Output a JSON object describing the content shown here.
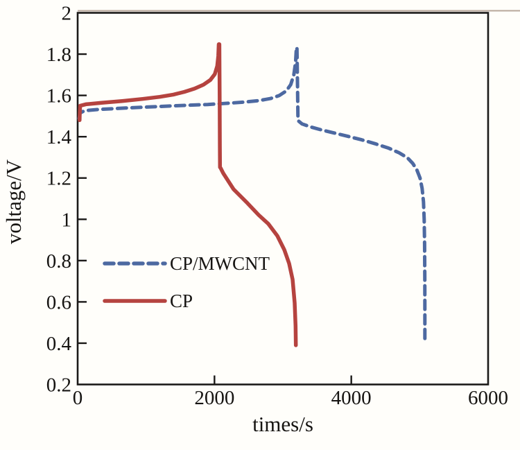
{
  "chart_data": {
    "type": "line",
    "title": "",
    "xlabel": "times/s",
    "ylabel": "voltage/V",
    "xlim": [
      0,
      6000
    ],
    "ylim": [
      0.2,
      2.0
    ],
    "x_ticks": [
      0,
      2000,
      4000,
      6000
    ],
    "x_tick_labels": [
      "0",
      "2000",
      "4000",
      "6000"
    ],
    "y_ticks": [
      0.2,
      0.4,
      0.6,
      0.8,
      1.0,
      1.2,
      1.4,
      1.6,
      1.8,
      2.0
    ],
    "y_tick_labels": [
      "0.2",
      "0.4",
      "0.6",
      "0.8",
      "1",
      "1.2",
      "1.4",
      "1.6",
      "1.8",
      "2"
    ],
    "grid": false,
    "frame_color": "#1b1918",
    "legend_position": "center-left",
    "series": [
      {
        "name": "CP/MWCNT",
        "color": "#4d69a1",
        "style": "dashed",
        "points": [
          [
            20,
            1.488
          ],
          [
            35,
            1.515
          ],
          [
            100,
            1.526
          ],
          [
            300,
            1.532
          ],
          [
            700,
            1.539
          ],
          [
            1100,
            1.545
          ],
          [
            1500,
            1.551
          ],
          [
            1900,
            1.556
          ],
          [
            2200,
            1.562
          ],
          [
            2450,
            1.568
          ],
          [
            2650,
            1.575
          ],
          [
            2820,
            1.585
          ],
          [
            2950,
            1.6
          ],
          [
            3050,
            1.622
          ],
          [
            3115,
            1.652
          ],
          [
            3160,
            1.7
          ],
          [
            3185,
            1.76
          ],
          [
            3198,
            1.832
          ],
          [
            3206,
            1.832
          ],
          [
            3214,
            1.65
          ],
          [
            3220,
            1.5
          ],
          [
            3225,
            1.477
          ],
          [
            3280,
            1.462
          ],
          [
            3400,
            1.448
          ],
          [
            3550,
            1.434
          ],
          [
            3750,
            1.418
          ],
          [
            3950,
            1.402
          ],
          [
            4150,
            1.385
          ],
          [
            4350,
            1.366
          ],
          [
            4550,
            1.344
          ],
          [
            4700,
            1.322
          ],
          [
            4820,
            1.298
          ],
          [
            4900,
            1.27
          ],
          [
            4960,
            1.238
          ],
          [
            5005,
            1.2
          ],
          [
            5035,
            1.15
          ],
          [
            5055,
            1.085
          ],
          [
            5066,
            1.0
          ],
          [
            5072,
            0.88
          ],
          [
            5075,
            0.72
          ],
          [
            5076,
            0.56
          ],
          [
            5076,
            0.42
          ]
        ]
      },
      {
        "name": "CP",
        "color": "#b5433f",
        "style": "solid",
        "points": [
          [
            28,
            1.48
          ],
          [
            31,
            1.515
          ],
          [
            36,
            1.55
          ],
          [
            120,
            1.557
          ],
          [
            350,
            1.564
          ],
          [
            650,
            1.573
          ],
          [
            950,
            1.583
          ],
          [
            1200,
            1.593
          ],
          [
            1400,
            1.604
          ],
          [
            1560,
            1.617
          ],
          [
            1710,
            1.633
          ],
          [
            1840,
            1.652
          ],
          [
            1940,
            1.675
          ],
          [
            2005,
            1.703
          ],
          [
            2040,
            1.742
          ],
          [
            2055,
            1.79
          ],
          [
            2062,
            1.848
          ],
          [
            2072,
            1.848
          ],
          [
            2076,
            1.6
          ],
          [
            2079,
            1.35
          ],
          [
            2081,
            1.252
          ],
          [
            2090,
            1.248
          ],
          [
            2128,
            1.223
          ],
          [
            2280,
            1.145
          ],
          [
            2483,
            1.078
          ],
          [
            2645,
            1.021
          ],
          [
            2787,
            0.978
          ],
          [
            2919,
            0.92
          ],
          [
            3020,
            0.853
          ],
          [
            3091,
            0.786
          ],
          [
            3142,
            0.709
          ],
          [
            3172,
            0.595
          ],
          [
            3185,
            0.484
          ],
          [
            3190,
            0.39
          ]
        ]
      }
    ]
  }
}
